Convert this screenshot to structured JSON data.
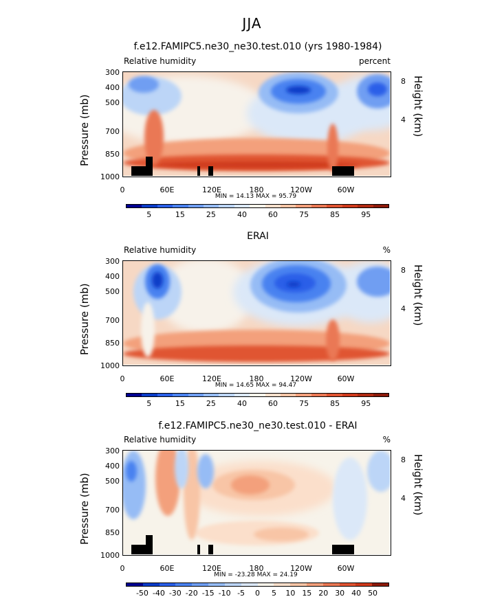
{
  "suptitle": "JJA",
  "chart_data": [
    {
      "type": "heatmap",
      "title": "f.e12.FAMIPC5.ne30_ne30.test.010 (yrs 1980-1984)",
      "field_label": "Relative humidity",
      "units": "percent",
      "ylabel": "Pressure (mb)",
      "ylabel_right": "Height (km)",
      "ylim": [
        1000,
        300
      ],
      "yticks": [
        "300",
        "400",
        "500",
        "700",
        "850",
        "1000"
      ],
      "right_ticks": [
        "8",
        "4"
      ],
      "xlim": [
        0,
        360
      ],
      "xticks": [
        "0",
        "60E",
        "120E",
        "180",
        "120W",
        "60W"
      ],
      "min": "14.13",
      "max": "95.79",
      "minmax_text": "MIN =   14.13   MAX =   95.79",
      "colorbar_levels": [
        "5",
        "15",
        "25",
        "40",
        "60",
        "75",
        "85",
        "95"
      ],
      "colorbar_colors": [
        "#000090",
        "#0a3cc8",
        "#2a5fe8",
        "#4a82f0",
        "#6f9ef2",
        "#96bcf5",
        "#bcd5f7",
        "#dbe8f8",
        "#f7f3ea",
        "#fbdfcb",
        "#f8c5a6",
        "#f3a07c",
        "#ea7854",
        "#e05432",
        "#cf3a1c",
        "#b02a12",
        "#8c1a0a"
      ],
      "topography": true
    },
    {
      "type": "heatmap",
      "title": "ERAI",
      "field_label": "Relative humidity",
      "units": "%",
      "ylabel": "Pressure (mb)",
      "ylabel_right": "Height (km)",
      "ylim": [
        1000,
        300
      ],
      "yticks": [
        "300",
        "400",
        "500",
        "700",
        "850",
        "1000"
      ],
      "right_ticks": [
        "8",
        "4"
      ],
      "xlim": [
        0,
        360
      ],
      "xticks": [
        "0",
        "60E",
        "120E",
        "180",
        "120W",
        "60W"
      ],
      "min": "14.65",
      "max": "94.47",
      "minmax_text": "MIN =   14.65   MAX =   94.47",
      "colorbar_levels": [
        "5",
        "15",
        "25",
        "40",
        "60",
        "75",
        "85",
        "95"
      ],
      "colorbar_colors": [
        "#000090",
        "#0a3cc8",
        "#2a5fe8",
        "#4a82f0",
        "#6f9ef2",
        "#96bcf5",
        "#bcd5f7",
        "#dbe8f8",
        "#f7f3ea",
        "#fbdfcb",
        "#f8c5a6",
        "#f3a07c",
        "#ea7854",
        "#e05432",
        "#cf3a1c",
        "#b02a12",
        "#8c1a0a"
      ],
      "topography": false
    },
    {
      "type": "heatmap",
      "title": "f.e12.FAMIPC5.ne30_ne30.test.010 - ERAI",
      "field_label": "Relative humidity",
      "units": "%",
      "ylabel": "Pressure (mb)",
      "ylabel_right": "Height (km)",
      "ylim": [
        1000,
        300
      ],
      "yticks": [
        "300",
        "400",
        "500",
        "700",
        "850",
        "1000"
      ],
      "right_ticks": [
        "8",
        "4"
      ],
      "xlim": [
        0,
        360
      ],
      "xticks": [
        "0",
        "60E",
        "120E",
        "180",
        "120W",
        "60W"
      ],
      "min": "-23.28",
      "max": "24.19",
      "minmax_text": "MIN =  -23.28   MAX =   24.19",
      "colorbar_levels": [
        "-50",
        "-40",
        "-30",
        "-20",
        "-15",
        "-10",
        "-5",
        "0",
        "5",
        "10",
        "15",
        "20",
        "30",
        "40",
        "50"
      ],
      "colorbar_colors": [
        "#000090",
        "#0a3cc8",
        "#2a5fe8",
        "#4a82f0",
        "#6f9ef2",
        "#96bcf5",
        "#bcd5f7",
        "#dbe8f8",
        "#f7f3ea",
        "#fbdfcb",
        "#f8c5a6",
        "#f3a07c",
        "#ea7854",
        "#e05432",
        "#cf3a1c",
        "#8c1a0a"
      ],
      "topography": true
    }
  ]
}
